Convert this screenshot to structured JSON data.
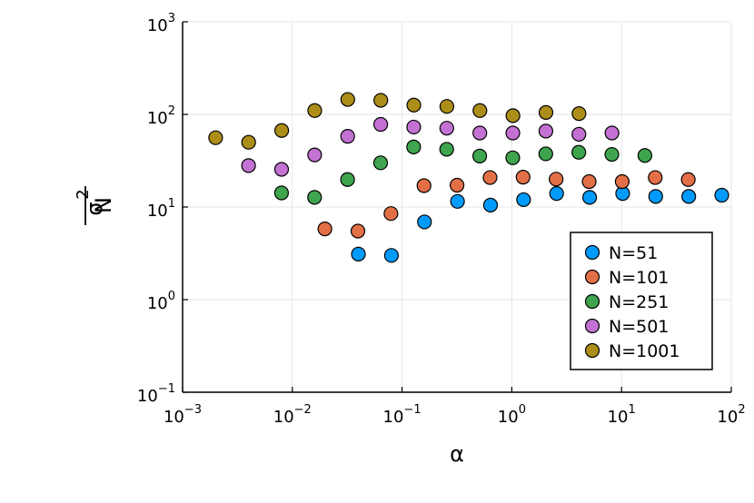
{
  "chart_data": {
    "type": "scatter",
    "xlabel": "α",
    "ylabel": {
      "numerator": "σ",
      "superscript": "2",
      "denominator": "N"
    },
    "x_scale": "log10",
    "y_scale": "log10",
    "xlim": [
      0.001,
      100
    ],
    "ylim": [
      0.1,
      1000
    ],
    "x_ticks": [
      {
        "base": "10",
        "exp": "−3",
        "value": 0.001
      },
      {
        "base": "10",
        "exp": "−2",
        "value": 0.01
      },
      {
        "base": "10",
        "exp": "−1",
        "value": 0.1
      },
      {
        "base": "10",
        "exp": "0",
        "value": 1
      },
      {
        "base": "10",
        "exp": "1",
        "value": 10
      },
      {
        "base": "10",
        "exp": "2",
        "value": 100
      }
    ],
    "y_ticks": [
      {
        "base": "10",
        "exp": "−1",
        "value": 0.1
      },
      {
        "base": "10",
        "exp": "0",
        "value": 1
      },
      {
        "base": "10",
        "exp": "1",
        "value": 10
      },
      {
        "base": "10",
        "exp": "2",
        "value": 100
      },
      {
        "base": "10",
        "exp": "3",
        "value": 1000
      }
    ],
    "grid": true,
    "legend_position": "bottom-right",
    "series": [
      {
        "name": "N=51",
        "color": "#009AFA",
        "x": [
          0.04,
          0.08,
          0.16,
          0.32,
          0.64,
          1.28,
          2.56,
          5.12,
          10.24,
          20.48,
          40.96,
          81.92
        ],
        "y": [
          3.1,
          3.0,
          6.9,
          11.5,
          10.5,
          12.0,
          14.0,
          12.7,
          14.0,
          13.0,
          13.0,
          13.4
        ]
      },
      {
        "name": "N=101",
        "color": "#E36F47",
        "x": [
          0.0198,
          0.0396,
          0.0792,
          0.1584,
          0.3168,
          0.6336,
          1.2672,
          2.5344,
          5.0688,
          10.1376,
          20.2752,
          40.5504
        ],
        "y": [
          5.8,
          5.5,
          8.5,
          17.0,
          17.2,
          20.8,
          21.0,
          20.0,
          18.8,
          18.8,
          20.8,
          19.8
        ]
      },
      {
        "name": "N=251",
        "color": "#3EA44E",
        "x": [
          0.00797,
          0.01594,
          0.03187,
          0.06375,
          0.1275,
          0.255,
          0.51,
          1.02,
          2.04,
          4.08,
          8.16,
          16.32
        ],
        "y": [
          14.2,
          12.7,
          19.8,
          30.0,
          44.5,
          42.0,
          35.5,
          34.0,
          37.5,
          39.0,
          37.0,
          36.0
        ]
      },
      {
        "name": "N=501",
        "color": "#C371D2",
        "x": [
          0.00399,
          0.00798,
          0.01597,
          0.03194,
          0.06387,
          0.1277,
          0.2555,
          0.511,
          1.022,
          2.044,
          4.088,
          8.176
        ],
        "y": [
          28.0,
          25.5,
          36.5,
          58.0,
          78.0,
          73.0,
          71.0,
          63.0,
          63.0,
          66.0,
          61.0,
          63.0
        ]
      },
      {
        "name": "N=1001",
        "color": "#AC8D18",
        "x": [
          0.002,
          0.004,
          0.008,
          0.016,
          0.032,
          0.064,
          0.128,
          0.256,
          0.512,
          1.024,
          2.048,
          4.096
        ],
        "y": [
          56.0,
          50.0,
          67.0,
          110.0,
          145.0,
          142.0,
          126.0,
          122.0,
          110.0,
          97.0,
          105.0,
          102.0
        ]
      }
    ]
  }
}
